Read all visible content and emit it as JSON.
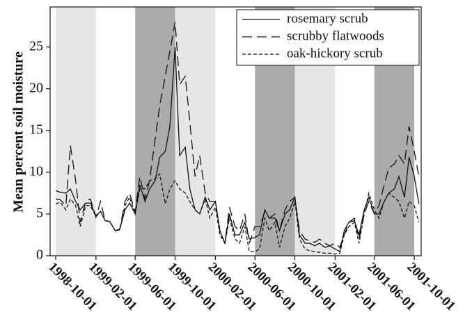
{
  "chart_data": {
    "type": "line",
    "y_label": "Mean percent soil moisture",
    "x": [
      "1998-10-01",
      "1998-10-15",
      "1998-11-01",
      "1998-11-15",
      "1998-12-01",
      "1998-12-15",
      "1999-01-01",
      "1999-01-15",
      "1999-02-01",
      "1999-02-15",
      "1999-03-01",
      "1999-03-15",
      "1999-04-01",
      "1999-04-15",
      "1999-05-01",
      "1999-05-15",
      "1999-06-01",
      "1999-06-15",
      "1999-07-01",
      "1999-07-15",
      "1999-08-01",
      "1999-08-15",
      "1999-09-01",
      "1999-09-15",
      "1999-10-01",
      "1999-10-15",
      "1999-11-01",
      "1999-11-15",
      "1999-12-01",
      "1999-12-15",
      "2000-01-01",
      "2000-01-15",
      "2000-02-01",
      "2000-02-15",
      "2000-03-01",
      "2000-03-15",
      "2000-04-01",
      "2000-04-15",
      "2000-05-01",
      "2000-05-15",
      "2000-06-01",
      "2000-06-15",
      "2000-07-01",
      "2000-07-15",
      "2000-08-01",
      "2000-08-15",
      "2000-09-01",
      "2000-09-15",
      "2000-10-01",
      "2000-10-15",
      "2000-11-01",
      "2000-11-15",
      "2000-12-01",
      "2000-12-15",
      "2001-01-01",
      "2001-01-15",
      "2001-02-01",
      "2001-02-15",
      "2001-03-01",
      "2001-03-15",
      "2001-04-01",
      "2001-04-15",
      "2001-05-01",
      "2001-05-15",
      "2001-06-01",
      "2001-06-15",
      "2001-07-01",
      "2001-07-15",
      "2001-08-01",
      "2001-08-15",
      "2001-09-01",
      "2001-09-15",
      "2001-10-01",
      "2001-10-15"
    ],
    "series": [
      {
        "name": "rosemary scrub",
        "color": "#111111",
        "line_style": "solid",
        "values": [
          7.8,
          7.6,
          7.5,
          8.0,
          6.5,
          5.5,
          6.3,
          6.3,
          4.8,
          5.3,
          4.2,
          4.1,
          3.0,
          3.2,
          5.5,
          6.3,
          5.0,
          8.5,
          6.5,
          8.0,
          9.0,
          11.8,
          12.5,
          15.5,
          25.0,
          12.0,
          13.0,
          8.0,
          5.5,
          5.0,
          7.0,
          5.5,
          6.5,
          3.0,
          1.5,
          5.0,
          2.5,
          2.5,
          4.0,
          2.0,
          2.2,
          2.5,
          5.5,
          4.5,
          4.5,
          3.0,
          5.0,
          5.5,
          7.0,
          2.5,
          1.5,
          1.5,
          1.2,
          1.5,
          1.0,
          1.2,
          0.8,
          0.5,
          3.0,
          4.0,
          4.2,
          2.5,
          5.5,
          7.0,
          5.0,
          5.0,
          6.5,
          7.5,
          8.0,
          9.5,
          7.0,
          11.8,
          9.5,
          6.2
        ]
      },
      {
        "name": "scrubby flatwoods",
        "color": "#111111",
        "line_style": "long-dash",
        "values": [
          6.8,
          6.7,
          6.0,
          13.2,
          9.0,
          4.0,
          6.5,
          6.8,
          4.6,
          6.5,
          4.2,
          4.1,
          3.0,
          3.2,
          6.5,
          7.5,
          5.2,
          9.5,
          6.8,
          9.0,
          14.0,
          18.0,
          21.5,
          24.5,
          28.0,
          20.5,
          21.5,
          16.0,
          9.5,
          12.0,
          7.5,
          6.5,
          6.5,
          3.0,
          1.5,
          5.8,
          3.5,
          3.0,
          5.0,
          1.5,
          3.5,
          3.5,
          5.2,
          4.5,
          5.0,
          3.0,
          5.5,
          6.5,
          7.0,
          3.0,
          2.0,
          1.8,
          1.6,
          2.0,
          1.5,
          1.2,
          1.5,
          1.0,
          2.5,
          4.0,
          4.5,
          2.0,
          5.0,
          6.5,
          5.0,
          6.0,
          8.5,
          10.5,
          11.0,
          12.0,
          11.0,
          15.5,
          12.5,
          9.5
        ]
      },
      {
        "name": "oak-hickory scrub",
        "color": "#111111",
        "line_style": "short-dash",
        "values": [
          6.2,
          6.4,
          5.5,
          6.8,
          6.0,
          3.5,
          6.0,
          6.0,
          4.7,
          5.3,
          4.2,
          4.1,
          3.0,
          3.1,
          6.0,
          7.0,
          5.0,
          8.0,
          8.0,
          9.0,
          9.2,
          9.8,
          6.2,
          8.0,
          9.0,
          8.0,
          7.5,
          6.5,
          5.5,
          5.0,
          6.8,
          4.5,
          5.8,
          2.5,
          1.5,
          4.5,
          2.0,
          1.5,
          3.5,
          0.5,
          0.5,
          0.8,
          4.5,
          3.0,
          4.0,
          1.0,
          3.5,
          4.5,
          6.5,
          2.0,
          0.8,
          0.6,
          0.5,
          0.4,
          0.3,
          0.3,
          0.2,
          0.3,
          2.5,
          3.5,
          4.0,
          1.5,
          5.0,
          7.5,
          5.5,
          4.5,
          6.5,
          7.5,
          7.0,
          6.5,
          4.5,
          6.5,
          6.0,
          4.0
        ]
      }
    ],
    "bands": [
      {
        "start": "1998-10-01",
        "end": "1999-02-01",
        "color": "#e6e6e6"
      },
      {
        "start": "1999-06-01",
        "end": "1999-10-01",
        "color": "#ababab"
      },
      {
        "start": "1999-10-01",
        "end": "2000-02-01",
        "color": "#e6e6e6"
      },
      {
        "start": "2000-06-01",
        "end": "2000-10-01",
        "color": "#ababab"
      },
      {
        "start": "2000-10-01",
        "end": "2001-02-01",
        "color": "#e6e6e6"
      },
      {
        "start": "2001-06-01",
        "end": "2001-10-01",
        "color": "#ababab"
      }
    ],
    "xlim": [
      "1998-09-14",
      "2001-10-22"
    ],
    "xticks": [
      "1998-10-01",
      "1999-02-01",
      "1999-06-01",
      "1999-10-01",
      "2000-02-01",
      "2000-06-01",
      "2000-10-01",
      "2001-02-01",
      "2001-06-01",
      "2001-10-01"
    ],
    "ylim": [
      0,
      29.8
    ],
    "yticks": [
      0,
      5,
      10,
      15,
      20,
      25
    ],
    "grid": false,
    "legend_position": "top-right"
  }
}
